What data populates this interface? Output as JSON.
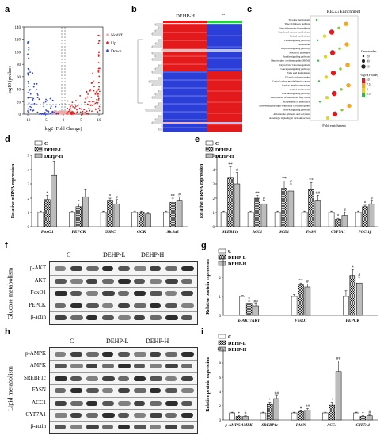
{
  "panels": [
    "a",
    "b",
    "c",
    "d",
    "e",
    "f",
    "g",
    "h",
    "i"
  ],
  "panel_a": {
    "ylabel": "-log10 (pvalue)",
    "xlabel": "log2 (Fold Change)",
    "xticks": [
      "-10",
      "-5",
      "0",
      "5",
      "10"
    ],
    "yticks": [
      "0",
      "20",
      "40",
      "60",
      "80",
      "100",
      "120",
      "140"
    ],
    "legend": [
      "Nodiff",
      "Up",
      "Down"
    ],
    "colors": {
      "nodiff": "#f4a6a6",
      "up": "#d62020",
      "down": "#2a3fd6"
    }
  },
  "panel_b": {
    "groups": [
      "DEHP-H",
      "C"
    ],
    "colors": {
      "high": "#e31a1c",
      "low": "#2b3fd8"
    }
  },
  "panel_c": {
    "title": "KEGG Enrichment",
    "xlabel": "Fold enrichment",
    "pathways": [
      "Tyrosine metabolism",
      "Type II diabetes mellitus",
      "Steroid hormone biosynthesis",
      "Starch and sucrose metabolism",
      "Retinol metabolism",
      "PPAR signaling pathway",
      "Peroxisome",
      "Oxytocin signaling pathway",
      "Metabolic pathways",
      "Insulin signaling pathway",
      "Hypertrophic cardiomyopathy (HCM)",
      "Glycolysis / Gluconeogenesis",
      "Glucagon signaling pathway",
      "Fatty acid degradation",
      "Dilated cardiomyopathy",
      "Central carbon metabolism in cancer",
      "Cardiac muscle contraction",
      "Carbon metabolism",
      "Calcium signaling pathway",
      "Biosynthesis of unsaturated fatty acids",
      "Biosynthesis of antibiotics",
      "Arrhythmogenic right ventricular cardiomyopathy",
      "AMPK signaling pathway",
      "Aldosterone synthesis and secretion",
      "Adrenergic signaling in cardiomyocytes"
    ],
    "legend_size_title": "Gene number",
    "legend_size": [
      "20",
      "40",
      "60"
    ],
    "legend_color_title": "-log10(P value)",
    "legend_color": [
      "10",
      "7.5",
      "5",
      "2.5"
    ]
  },
  "panel_d": {
    "legend": [
      "C",
      "DEHP-L",
      "DEHP-H"
    ],
    "ylabel": "Relative mRNA expression",
    "chart_data": {
      "type": "bar",
      "categories": [
        "FoxO1",
        "PEPCK",
        "G6PC",
        "GCK",
        "Slc2a2"
      ],
      "series": [
        {
          "name": "C",
          "values": [
            1.0,
            1.0,
            1.0,
            1.0,
            1.0
          ]
        },
        {
          "name": "DEHP-L",
          "values": [
            1.9,
            1.4,
            1.8,
            1.0,
            1.7
          ]
        },
        {
          "name": "DEHP-H",
          "values": [
            3.6,
            2.1,
            1.6,
            0.9,
            1.8
          ]
        }
      ],
      "errors": [
        [
          0.1,
          0.1,
          0.1,
          0.1,
          0.1
        ],
        [
          0.3,
          0.2,
          0.2,
          0.1,
          0.3
        ],
        [
          1.0,
          0.5,
          0.3,
          0.1,
          0.3
        ]
      ],
      "marks": [
        [
          "",
          "*",
          "#"
        ],
        [
          "",
          "*",
          ""
        ],
        [
          "",
          "*",
          "#"
        ],
        [
          "",
          "",
          ""
        ],
        [
          "",
          "**",
          "#"
        ]
      ],
      "ylim": [
        0,
        5
      ]
    }
  },
  "panel_e": {
    "legend": [
      "C",
      "DEHP-L",
      "DEHP-H"
    ],
    "ylabel": "Relative mRNA expression",
    "chart_data": {
      "type": "bar",
      "categories": [
        "SREBP1c",
        "ACC1",
        "SCD1",
        "FASN",
        "CYP7A1",
        "PGC-1β"
      ],
      "series": [
        {
          "name": "C",
          "values": [
            1.0,
            1.0,
            1.0,
            1.0,
            1.0,
            1.0
          ]
        },
        {
          "name": "DEHP-L",
          "values": [
            3.4,
            2.0,
            2.7,
            2.6,
            0.5,
            1.4
          ]
        },
        {
          "name": "DEHP-H",
          "values": [
            3.0,
            1.6,
            2.5,
            1.8,
            0.8,
            1.6
          ]
        }
      ],
      "errors": [
        [
          0.1,
          0.1,
          0.1,
          0.1,
          0.1,
          0.1
        ],
        [
          0.8,
          0.2,
          0.5,
          0.5,
          0.1,
          0.1
        ],
        [
          0.8,
          0.2,
          0.5,
          0.4,
          0.2,
          0.2
        ]
      ],
      "marks": [
        [
          "",
          "**",
          "#"
        ],
        [
          "",
          "**",
          "#"
        ],
        [
          "",
          "**",
          "#"
        ],
        [
          "",
          "**",
          "##"
        ],
        [
          "",
          "*",
          "#"
        ],
        [
          "",
          "*",
          "#"
        ]
      ],
      "ylim": [
        0,
        5
      ]
    }
  },
  "panel_f": {
    "side_label": "Glucose metabolism",
    "groups": [
      "C",
      "DEHP-L",
      "DEHP-H"
    ],
    "rows": [
      "p-AKT",
      "AKT",
      "FoxO1",
      "PEPCK",
      "β-actin"
    ]
  },
  "panel_g": {
    "legend": [
      "C",
      "DEHP-L",
      "DEHP-H"
    ],
    "ylabel": "Relative protein expression",
    "chart_data": {
      "type": "bar",
      "categories": [
        "p-AKT/AKT",
        "FoxO1",
        "PEPCK"
      ],
      "series": [
        {
          "name": "C",
          "values": [
            1.0,
            1.0,
            1.0
          ]
        },
        {
          "name": "DEHP-L",
          "values": [
            0.6,
            1.6,
            2.1
          ]
        },
        {
          "name": "DEHP-H",
          "values": [
            0.5,
            1.5,
            1.7
          ]
        }
      ],
      "errors": [
        [
          0.05,
          0.1,
          0.3
        ],
        [
          0.15,
          0.1,
          0.3
        ],
        [
          0.1,
          0.15,
          0.3
        ]
      ],
      "marks": [
        [
          "",
          "*",
          "##"
        ],
        [
          "",
          "**",
          "#"
        ],
        [
          "",
          "*",
          "#"
        ]
      ],
      "ylim": [
        0,
        3
      ]
    }
  },
  "panel_h": {
    "side_label": "Lipid metabolism",
    "groups": [
      "C",
      "DEHP-L",
      "DEHP-H"
    ],
    "rows": [
      "p-AMPK",
      "AMPK",
      "SREBP1c",
      "FASN",
      "ACC1",
      "CYP7A1",
      "β-actin"
    ]
  },
  "panel_i": {
    "legend": [
      "C",
      "DEHP-L",
      "DEHP-H"
    ],
    "ylabel": "Relative protein expression",
    "chart_data": {
      "type": "bar",
      "categories": [
        "p-AMPK/AMPK",
        "SREBP1c",
        "FASN",
        "ACC1",
        "CYP7A1"
      ],
      "series": [
        {
          "name": "C",
          "values": [
            1.0,
            1.0,
            1.0,
            1.0,
            1.0
          ]
        },
        {
          "name": "DEHP-L",
          "values": [
            0.5,
            2.2,
            1.2,
            2.1,
            0.5
          ]
        },
        {
          "name": "DEHP-H",
          "values": [
            0.5,
            3.0,
            1.4,
            6.8,
            0.6
          ]
        }
      ],
      "errors": [
        [
          0.1,
          0.1,
          0.1,
          0.1,
          0.1
        ],
        [
          0.1,
          0.3,
          0.1,
          0.4,
          0.1
        ],
        [
          0.1,
          0.4,
          0.2,
          1.5,
          0.1
        ]
      ],
      "marks": [
        [
          "",
          "*",
          "#"
        ],
        [
          "",
          "*",
          "##"
        ],
        [
          "",
          "*",
          "##"
        ],
        [
          "",
          "*",
          "##"
        ],
        [
          "",
          "*",
          "#"
        ]
      ],
      "ylim": [
        0,
        10
      ]
    }
  }
}
